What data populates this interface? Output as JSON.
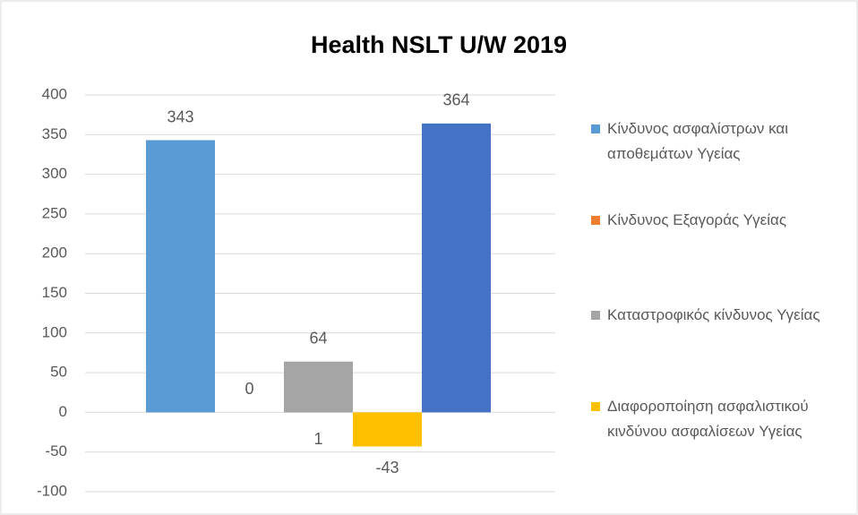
{
  "chart_data": {
    "type": "bar",
    "title": "Health NSLT U/W 2019",
    "categories": [
      null,
      null,
      null,
      null,
      null
    ],
    "values": [
      343,
      0,
      64,
      -43,
      364
    ],
    "colors": [
      "#5b9bd5",
      "#ed7d31",
      "#a5a5a5",
      "#ffc000",
      "#4472c4"
    ],
    "legend": [
      "Κίνδυνος ασφαλίστρων και αποθεμάτων Υγείας",
      "Κίνδυνος Εξαγοράς Υγείας",
      "Καταστροφικός κίνδυνος Υγείας",
      "Διαφοροποίηση ασφαλιστικού κινδύνου ασφαλίσεων Υγείας"
    ],
    "annotations": [
      "1"
    ],
    "ylim": [
      -100,
      400
    ],
    "yticks": [
      -100,
      -50,
      0,
      50,
      100,
      150,
      200,
      250,
      300,
      350,
      400
    ],
    "grid": true
  }
}
